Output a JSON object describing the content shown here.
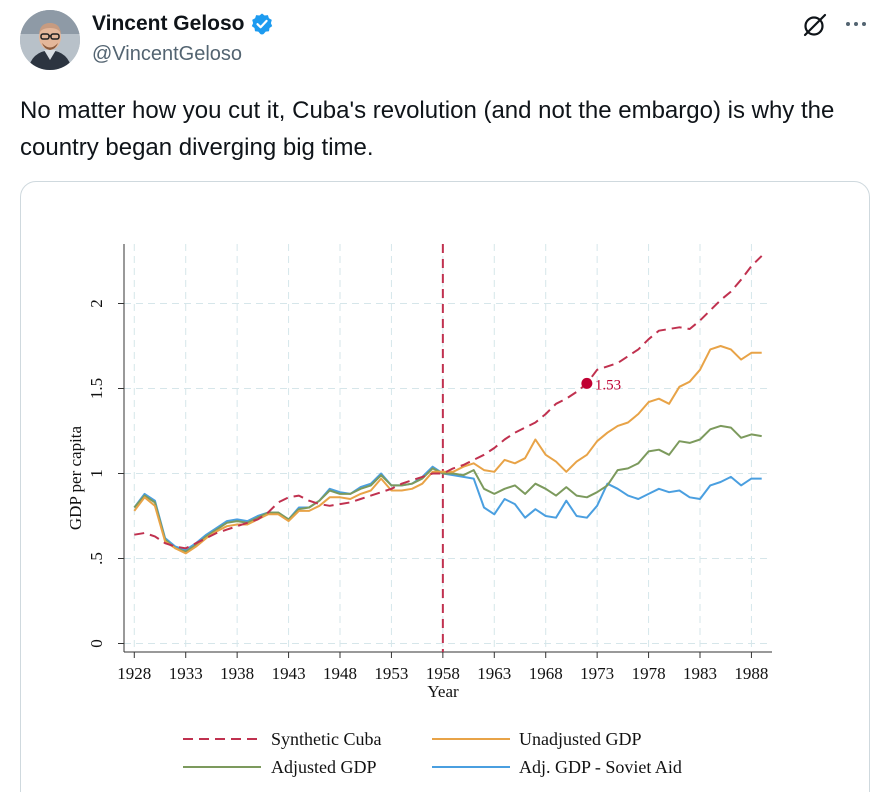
{
  "author": {
    "display_name": "Vincent Geloso",
    "handle": "@VincentGeloso",
    "verified_color": "#1d9bf0"
  },
  "tweet": {
    "text": "No matter how you cut it, Cuba's revolution (and not the embargo) is why the country began diverging big time."
  },
  "icons": {
    "grok": "grok-icon",
    "more": "more-icon",
    "verified": "verified-badge-icon"
  },
  "chart_data": {
    "type": "line",
    "xlabel": "Year",
    "ylabel": "GDP per capita",
    "xlim": [
      1927,
      1990
    ],
    "ylim": [
      -0.05,
      2.35
    ],
    "x_ticks": [
      1928,
      1933,
      1938,
      1943,
      1948,
      1953,
      1958,
      1963,
      1968,
      1973,
      1978,
      1983,
      1988
    ],
    "x_tick_labels": [
      "1928",
      "1933",
      "1938",
      "1943",
      "1948",
      "1953",
      "1958",
      "1963",
      "1968",
      "1973",
      "1978",
      "1983",
      "1988"
    ],
    "y_ticks": [
      0,
      0.5,
      1,
      1.5,
      2
    ],
    "y_tick_labels": [
      "0",
      ".5",
      "1",
      "1.5",
      "2"
    ],
    "grid": true,
    "vline": {
      "x": 1958,
      "color": "#c0314f"
    },
    "annotation": {
      "x": 1972,
      "y": 1.53,
      "label": "1.53",
      "color": "#c00033"
    },
    "years_pre": [
      1928,
      1929,
      1930,
      1931,
      1932,
      1933,
      1934,
      1935,
      1936,
      1937,
      1938,
      1939,
      1940,
      1941,
      1942,
      1943,
      1944,
      1945,
      1946,
      1947,
      1948,
      1949,
      1950,
      1951,
      1952,
      1953,
      1954,
      1955,
      1956,
      1957,
      1958
    ],
    "years_all": [
      1928,
      1929,
      1930,
      1931,
      1932,
      1933,
      1934,
      1935,
      1936,
      1937,
      1938,
      1939,
      1940,
      1941,
      1942,
      1943,
      1944,
      1945,
      1946,
      1947,
      1948,
      1949,
      1950,
      1951,
      1952,
      1953,
      1954,
      1955,
      1956,
      1957,
      1958,
      1959,
      1960,
      1961,
      1962,
      1963,
      1964,
      1965,
      1966,
      1967,
      1968,
      1969,
      1970,
      1971,
      1972,
      1973,
      1974,
      1975,
      1976,
      1977,
      1978,
      1979,
      1980,
      1981,
      1982,
      1983,
      1984,
      1985,
      1986,
      1987,
      1988,
      1989
    ],
    "synthetic_years": [
      1928,
      1929,
      1930,
      1931,
      1932,
      1933,
      1934,
      1935,
      1936,
      1937,
      1938,
      1939,
      1940,
      1941,
      1942,
      1943,
      1944,
      1945,
      1946,
      1947,
      1948,
      1949,
      1950,
      1951,
      1952,
      1953,
      1954,
      1955,
      1956,
      1957,
      1958,
      1959,
      1960,
      1961,
      1962,
      1963,
      1964,
      1965,
      1966,
      1967,
      1968,
      1969,
      1970,
      1971,
      1972,
      1973,
      1974,
      1975,
      1976,
      1977,
      1978,
      1979,
      1980,
      1981,
      1982,
      1983,
      1984,
      1985,
      1986,
      1987,
      1988,
      1989
    ],
    "series": [
      {
        "name": "Synthetic Cuba",
        "color": "#c0314f",
        "dashed": true,
        "values": [
          0.64,
          0.65,
          0.63,
          0.59,
          0.57,
          0.56,
          0.59,
          0.62,
          0.65,
          0.67,
          0.69,
          0.71,
          0.73,
          0.77,
          0.83,
          0.86,
          0.87,
          0.84,
          0.82,
          0.81,
          0.82,
          0.83,
          0.85,
          0.87,
          0.89,
          0.91,
          0.94,
          0.96,
          0.98,
          1.0,
          1.0,
          1.03,
          1.05,
          1.08,
          1.11,
          1.15,
          1.2,
          1.24,
          1.27,
          1.3,
          1.35,
          1.41,
          1.44,
          1.48,
          1.53,
          1.61,
          1.63,
          1.65,
          1.69,
          1.73,
          1.79,
          1.84,
          1.85,
          1.86,
          1.85,
          1.9,
          1.96,
          2.02,
          2.07,
          2.14,
          2.22,
          2.28
        ]
      },
      {
        "name": "Unadjusted GDP",
        "color": "#e8a347",
        "dashed": false,
        "values": [
          0.78,
          0.86,
          0.81,
          0.6,
          0.56,
          0.53,
          0.57,
          0.62,
          0.66,
          0.69,
          0.7,
          0.7,
          0.73,
          0.76,
          0.76,
          0.72,
          0.78,
          0.78,
          0.81,
          0.86,
          0.86,
          0.85,
          0.88,
          0.9,
          0.97,
          0.9,
          0.9,
          0.91,
          0.94,
          1.01,
          1.01,
          1.01,
          1.04,
          1.06,
          1.02,
          1.01,
          1.08,
          1.06,
          1.09,
          1.2,
          1.11,
          1.07,
          1.01,
          1.07,
          1.11,
          1.19,
          1.24,
          1.28,
          1.3,
          1.35,
          1.42,
          1.44,
          1.41,
          1.51,
          1.54,
          1.61,
          1.73,
          1.75,
          1.73,
          1.67,
          1.71,
          1.71
        ]
      },
      {
        "name": "Adjusted GDP",
        "color": "#7c9a5d",
        "dashed": false,
        "values": [
          0.8,
          0.87,
          0.83,
          0.61,
          0.56,
          0.54,
          0.58,
          0.63,
          0.67,
          0.71,
          0.72,
          0.71,
          0.74,
          0.77,
          0.77,
          0.73,
          0.79,
          0.8,
          0.84,
          0.9,
          0.88,
          0.88,
          0.91,
          0.93,
          0.99,
          0.93,
          0.93,
          0.94,
          0.97,
          1.03,
          1.0,
          1.0,
          0.99,
          1.02,
          0.91,
          0.88,
          0.91,
          0.93,
          0.88,
          0.94,
          0.91,
          0.87,
          0.92,
          0.87,
          0.86,
          0.89,
          0.93,
          1.02,
          1.03,
          1.06,
          1.13,
          1.14,
          1.11,
          1.19,
          1.18,
          1.2,
          1.26,
          1.28,
          1.27,
          1.21,
          1.23,
          1.22
        ]
      },
      {
        "name": "Adj. GDP - Soviet Aid",
        "color": "#4a9fe0",
        "dashed": false,
        "values": [
          0.8,
          0.88,
          0.84,
          0.62,
          0.57,
          0.55,
          0.59,
          0.64,
          0.68,
          0.72,
          0.73,
          0.72,
          0.75,
          0.77,
          0.77,
          0.73,
          0.8,
          0.8,
          0.84,
          0.91,
          0.89,
          0.88,
          0.92,
          0.94,
          1.0,
          0.93,
          0.93,
          0.94,
          0.98,
          1.04,
          1.0,
          0.99,
          0.98,
          0.97,
          0.8,
          0.76,
          0.85,
          0.82,
          0.74,
          0.79,
          0.75,
          0.74,
          0.84,
          0.75,
          0.74,
          0.81,
          0.94,
          0.91,
          0.87,
          0.85,
          0.88,
          0.91,
          0.89,
          0.9,
          0.86,
          0.85,
          0.93,
          0.95,
          0.98,
          0.93,
          0.97,
          0.97
        ]
      }
    ],
    "legend": {
      "placement": "bottom",
      "entries": [
        "Synthetic Cuba",
        "Unadjusted GDP",
        "Adjusted GDP",
        "Adj. GDP - Soviet Aid"
      ]
    }
  }
}
